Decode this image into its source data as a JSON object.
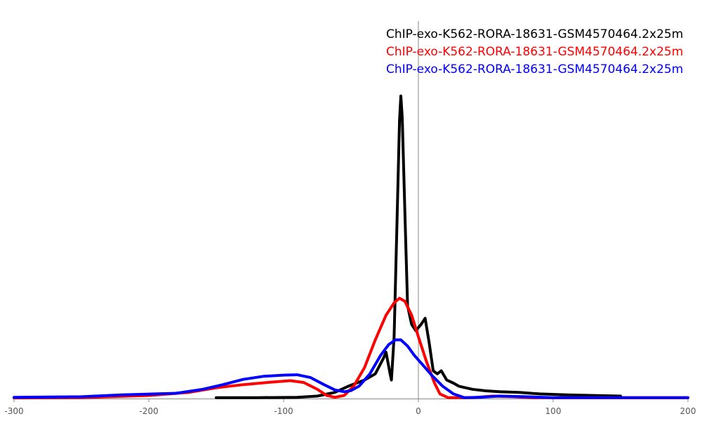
{
  "chart_data": {
    "type": "line",
    "xlim": [
      -300,
      200
    ],
    "ylim": [
      0,
      1
    ],
    "x_ticks": [
      -300,
      -200,
      -100,
      0,
      100,
      200
    ],
    "x_tick_labels": [
      "-300",
      "-200",
      "-100",
      "0",
      "100",
      "200"
    ],
    "vertical_reference_x": 0,
    "grid": false,
    "legend_position": "top-right",
    "series": [
      {
        "name": "ChIP-exo-K562-RORA-18631-GSM4570464.2x25m",
        "color": "#000000",
        "points": [
          [
            -150,
            0.003
          ],
          [
            -120,
            0.003
          ],
          [
            -90,
            0.004
          ],
          [
            -75,
            0.008
          ],
          [
            -62,
            0.02
          ],
          [
            -52,
            0.04
          ],
          [
            -40,
            0.06
          ],
          [
            -32,
            0.08
          ],
          [
            -26,
            0.13
          ],
          [
            -24,
            0.15
          ],
          [
            -21,
            0.08
          ],
          [
            -20,
            0.06
          ],
          [
            -18,
            0.2
          ],
          [
            -16,
            0.55
          ],
          [
            -14,
            0.9
          ],
          [
            -13,
            0.98
          ],
          [
            -12,
            0.91
          ],
          [
            -10,
            0.6
          ],
          [
            -8,
            0.3
          ],
          [
            -5,
            0.24
          ],
          [
            -2,
            0.22
          ],
          [
            2,
            0.24
          ],
          [
            5,
            0.26
          ],
          [
            8,
            0.18
          ],
          [
            11,
            0.09
          ],
          [
            14,
            0.08
          ],
          [
            17,
            0.09
          ],
          [
            21,
            0.06
          ],
          [
            26,
            0.05
          ],
          [
            30,
            0.04
          ],
          [
            40,
            0.03
          ],
          [
            50,
            0.025
          ],
          [
            60,
            0.022
          ],
          [
            75,
            0.02
          ],
          [
            90,
            0.015
          ],
          [
            110,
            0.012
          ],
          [
            130,
            0.01
          ],
          [
            150,
            0.008
          ]
        ]
      },
      {
        "name": "ChIP-exo-K562-RORA-18631-GSM4570464.2x25m",
        "color": "#ff0000",
        "points": [
          [
            -300,
            0.002
          ],
          [
            -250,
            0.003
          ],
          [
            -200,
            0.01
          ],
          [
            -170,
            0.02
          ],
          [
            -150,
            0.035
          ],
          [
            -130,
            0.045
          ],
          [
            -110,
            0.053
          ],
          [
            -95,
            0.058
          ],
          [
            -85,
            0.052
          ],
          [
            -75,
            0.03
          ],
          [
            -68,
            0.01
          ],
          [
            -62,
            0.004
          ],
          [
            -55,
            0.01
          ],
          [
            -48,
            0.04
          ],
          [
            -40,
            0.1
          ],
          [
            -32,
            0.19
          ],
          [
            -24,
            0.27
          ],
          [
            -18,
            0.31
          ],
          [
            -14,
            0.325
          ],
          [
            -10,
            0.315
          ],
          [
            -5,
            0.27
          ],
          [
            0,
            0.2
          ],
          [
            6,
            0.12
          ],
          [
            12,
            0.05
          ],
          [
            16,
            0.015
          ],
          [
            22,
            0.003
          ],
          [
            40,
            0.003
          ],
          [
            55,
            0.008
          ],
          [
            70,
            0.006
          ],
          [
            85,
            0.003
          ],
          [
            120,
            0.003
          ],
          [
            200,
            0.003
          ]
        ]
      },
      {
        "name": "ChIP-exo-K562-RORA-18631-GSM4570464.2x25m",
        "color": "#0000ff",
        "points": [
          [
            -300,
            0.004
          ],
          [
            -250,
            0.006
          ],
          [
            -220,
            0.012
          ],
          [
            -180,
            0.017
          ],
          [
            -160,
            0.03
          ],
          [
            -145,
            0.045
          ],
          [
            -130,
            0.062
          ],
          [
            -115,
            0.072
          ],
          [
            -100,
            0.076
          ],
          [
            -90,
            0.077
          ],
          [
            -80,
            0.068
          ],
          [
            -70,
            0.045
          ],
          [
            -62,
            0.028
          ],
          [
            -55,
            0.022
          ],
          [
            -50,
            0.026
          ],
          [
            -44,
            0.04
          ],
          [
            -36,
            0.08
          ],
          [
            -28,
            0.14
          ],
          [
            -22,
            0.175
          ],
          [
            -17,
            0.19
          ],
          [
            -13,
            0.19
          ],
          [
            -8,
            0.17
          ],
          [
            -3,
            0.14
          ],
          [
            3,
            0.11
          ],
          [
            10,
            0.075
          ],
          [
            18,
            0.04
          ],
          [
            26,
            0.015
          ],
          [
            34,
            0.003
          ],
          [
            45,
            0.004
          ],
          [
            60,
            0.008
          ],
          [
            80,
            0.006
          ],
          [
            100,
            0.003
          ],
          [
            200,
            0.003
          ]
        ]
      }
    ]
  }
}
